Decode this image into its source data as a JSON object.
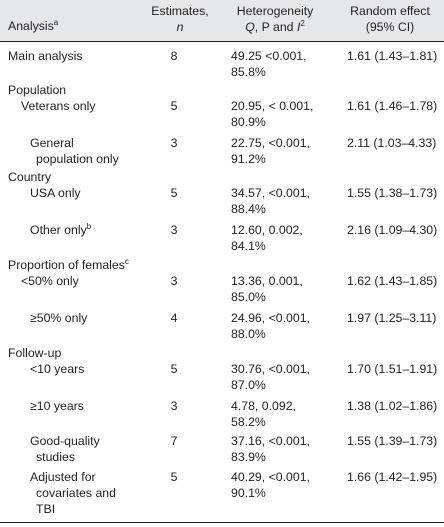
{
  "header": {
    "analysis": "Analysis",
    "analysis_sup": "a",
    "estimates": "Estimates,",
    "n": "n",
    "heterogeneity": "Heterogeneity",
    "q": "Q",
    "p_and": ", P and ",
    "i": "I",
    "i_sup": "2",
    "random_effect": "Random effect",
    "ci": "(95% CI)"
  },
  "rows": [
    {
      "label": "Main analysis",
      "n": "8",
      "het1": "49.25 <0.001,",
      "het2": "85.8%",
      "re": "1.61 (1.43–1.81)"
    },
    {
      "label": "Population"
    },
    {
      "label": "Veterans only",
      "n": "5",
      "het1": "20.95, < 0.001,",
      "het2": "80.9%",
      "re": "1.61 (1.46–1.78)"
    },
    {
      "label1": "General",
      "label2": "population only",
      "n": "3",
      "het1": "22.75, <0.001,",
      "het2": "91.2%",
      "re": "2.11 (1.03–4.33)"
    },
    {
      "label": "Country"
    },
    {
      "label": "USA only",
      "n": "5",
      "het1": "34.57, <0.001,",
      "het2": "88.4%",
      "re": "1.55 (1.38–1.73)"
    },
    {
      "label": "Other only",
      "sup": "b",
      "n": "3",
      "het1": "12.60, 0.002,",
      "het2": "84.1%",
      "re": "2.16 (1.09–4.30)"
    },
    {
      "label": "Proportion of females",
      "sup": "c"
    },
    {
      "label": "<50% only",
      "n": "3",
      "het1": "13.36, 0.001,",
      "het2": "85.0%",
      "re": "1.62 (1.43–1.85)"
    },
    {
      "label": "≥50% only",
      "n": "4",
      "het1": "24.96, <0.001,",
      "het2": "88.0%",
      "re": "1.97 (1.25–3.11)"
    },
    {
      "label": "Follow-up"
    },
    {
      "label": "<10 years",
      "n": "5",
      "het1": "30.76, <0.001,",
      "het2": "87.0%",
      "re": "1.70 (1.51–1.91)"
    },
    {
      "label": "≥10 years",
      "n": "3",
      "het1": "4.78, 0.092,",
      "het2": "58.2%",
      "re": "1.38 (1.02–1.86)"
    },
    {
      "label1": "Good-quality",
      "label2": "studies",
      "n": "7",
      "het1": "37.16, <0.001,",
      "het2": "83.9%",
      "re": "1.55 (1.39–1.73)"
    },
    {
      "label1": "Adjusted for",
      "label2": "covariates and",
      "label3": "TBI",
      "n": "5",
      "het1": "40.29, <0.001,",
      "het2": "90.1%",
      "re": "1.66 (1.42–1.95)"
    }
  ]
}
